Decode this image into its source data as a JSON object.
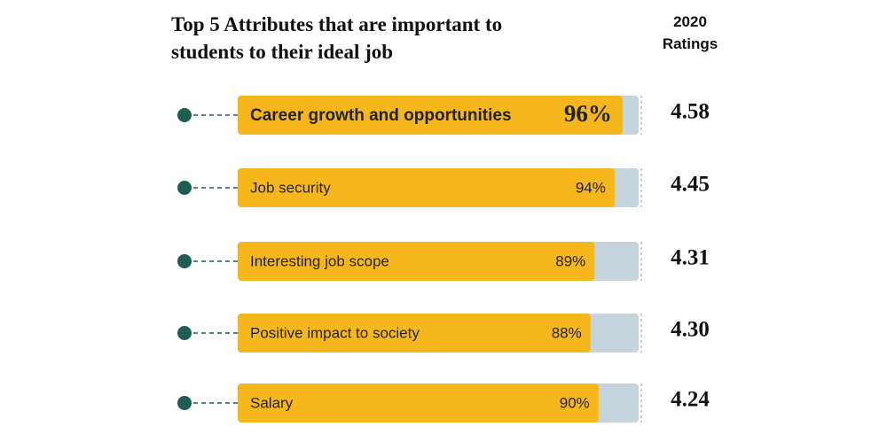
{
  "chart_data": {
    "type": "bar",
    "orientation": "horizontal",
    "title": "Top 5 Attributes that are important to students to their ideal job",
    "ratings_header": "2020 Ratings",
    "categories": [
      "Career growth and opportunities",
      "Job security",
      "Interesting job scope",
      "Positive impact to society",
      "Salary"
    ],
    "values": [
      96,
      94,
      89,
      88,
      90
    ],
    "value_labels": [
      "96%",
      "94%",
      "89%",
      "88%",
      "90%"
    ],
    "ratings": [
      "4.58",
      "4.45",
      "4.31",
      "4.30",
      "4.24"
    ],
    "xlim": [
      0,
      100
    ],
    "color": "#f5b71b",
    "track_color": "#c6d4de",
    "dot_color": "#1d5e50"
  }
}
